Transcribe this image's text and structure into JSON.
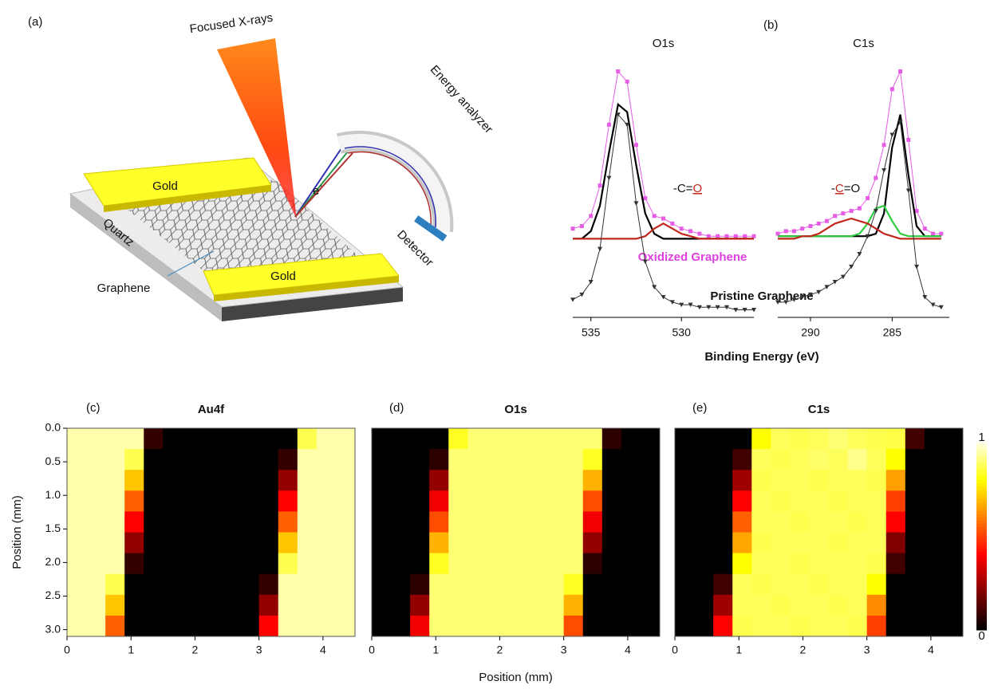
{
  "figure": {
    "panel_labels": [
      "(a)",
      "(b)",
      "(c)",
      "(d)",
      "(e)"
    ],
    "spectra_xlabel": "Binding Energy (eV)",
    "spectra_annotations": [
      "Oxidized Graphene",
      "Pristine Graphene"
    ]
  },
  "schematic": {
    "beam": "Focused X-rays",
    "analyzer": "Energy analyzer",
    "electron": "e",
    "electron_charge": "-",
    "gold": [
      "Gold",
      "Gold"
    ],
    "substrate": "Quartz",
    "sheet": "Graphene",
    "detector": "Detector"
  },
  "chart_data": [
    {
      "type": "line",
      "title": "O1s",
      "x": [
        536,
        535.5,
        535,
        534.5,
        534,
        533.5,
        533,
        532.5,
        532,
        531.5,
        531,
        530.5,
        530,
        529.5,
        529,
        528.5,
        528,
        527.5,
        527,
        526.5,
        526
      ],
      "xlim": [
        536,
        526
      ],
      "xticks": [
        535,
        530
      ],
      "ylim": [
        0,
        1
      ],
      "annotation": {
        "parts": [
          "-C=",
          "O"
        ],
        "highlight": 1
      },
      "series": [
        {
          "color": "#e55ce5",
          "marker": "square",
          "values": [
            0.35,
            0.36,
            0.4,
            0.52,
            0.76,
            0.97,
            0.93,
            0.68,
            0.47,
            0.4,
            0.39,
            0.37,
            0.35,
            0.34,
            0.33,
            0.32,
            0.32,
            0.32,
            0.32,
            0.32,
            0.32
          ]
        },
        {
          "color": "#000000",
          "marker": "none",
          "values": [
            0.31,
            0.31,
            0.34,
            0.44,
            0.65,
            0.84,
            0.81,
            0.6,
            0.41,
            0.33,
            0.31,
            0.31,
            0.31,
            0.31,
            0.31,
            0.31,
            0.31,
            0.31,
            0.31,
            0.31,
            0.31
          ]
        },
        {
          "color": "#c0281c",
          "marker": "none",
          "values": [
            0.31,
            0.31,
            0.31,
            0.31,
            0.31,
            0.31,
            0.31,
            0.31,
            0.32,
            0.35,
            0.37,
            0.35,
            0.33,
            0.32,
            0.31,
            0.31,
            0.31,
            0.31,
            0.31,
            0.31,
            0.31
          ]
        },
        {
          "color": "#333333",
          "marker": "triangle",
          "values": [
            0.07,
            0.09,
            0.14,
            0.27,
            0.55,
            0.8,
            0.76,
            0.45,
            0.22,
            0.12,
            0.08,
            0.06,
            0.05,
            0.05,
            0.04,
            0.04,
            0.04,
            0.04,
            0.03,
            0.03,
            0.03
          ]
        }
      ]
    },
    {
      "type": "line",
      "title": "C1s",
      "x": [
        292,
        291.5,
        291,
        290.5,
        290,
        289.5,
        289,
        288.5,
        288,
        287.5,
        287,
        286.5,
        286,
        285.5,
        285,
        284.5,
        284,
        283.5,
        283,
        282.5,
        282
      ],
      "xlim": [
        292,
        281.5
      ],
      "xticks": [
        290,
        285
      ],
      "ylim": [
        0,
        1
      ],
      "annotation": {
        "parts": [
          "-",
          "C",
          "=O"
        ],
        "highlight": 1
      },
      "series": [
        {
          "color": "#e55ce5",
          "marker": "square",
          "values": [
            0.33,
            0.34,
            0.34,
            0.35,
            0.36,
            0.37,
            0.38,
            0.4,
            0.41,
            0.42,
            0.43,
            0.47,
            0.55,
            0.68,
            0.9,
            0.97,
            0.7,
            0.42,
            0.35,
            0.33,
            0.33
          ]
        },
        {
          "color": "#000000",
          "marker": "none",
          "values": [
            0.32,
            0.32,
            0.32,
            0.32,
            0.32,
            0.32,
            0.32,
            0.32,
            0.32,
            0.32,
            0.32,
            0.32,
            0.33,
            0.41,
            0.67,
            0.8,
            0.56,
            0.36,
            0.32,
            0.32,
            0.32
          ]
        },
        {
          "color": "#2ecc40",
          "marker": "none",
          "values": [
            0.32,
            0.32,
            0.32,
            0.32,
            0.32,
            0.32,
            0.32,
            0.32,
            0.32,
            0.32,
            0.33,
            0.37,
            0.43,
            0.44,
            0.38,
            0.33,
            0.32,
            0.32,
            0.32,
            0.32,
            0.32
          ]
        },
        {
          "color": "#c0281c",
          "marker": "none",
          "values": [
            0.31,
            0.31,
            0.31,
            0.32,
            0.32,
            0.33,
            0.35,
            0.37,
            0.38,
            0.39,
            0.38,
            0.37,
            0.35,
            0.33,
            0.32,
            0.31,
            0.31,
            0.31,
            0.31,
            0.31,
            0.31
          ]
        },
        {
          "color": "#333333",
          "marker": "triangle",
          "values": [
            0.06,
            0.06,
            0.07,
            0.08,
            0.09,
            0.1,
            0.12,
            0.14,
            0.16,
            0.2,
            0.25,
            0.32,
            0.42,
            0.58,
            0.72,
            0.77,
            0.5,
            0.2,
            0.08,
            0.05,
            0.04
          ]
        }
      ]
    },
    {
      "type": "heatmap",
      "title": "Au4f",
      "ylabel": "Position (mm)",
      "xlim": [
        0,
        4.5
      ],
      "xticks": [
        0,
        1,
        2,
        3,
        4
      ],
      "ylim": [
        0,
        3.1
      ],
      "yticks": [
        {
          "value": 0,
          "label": "0.0"
        },
        {
          "value": 0.5,
          "label": "0.5"
        },
        {
          "value": 1,
          "label": "1.0"
        },
        {
          "value": 1.5,
          "label": "1.5"
        },
        {
          "value": 2,
          "label": "2.0"
        },
        {
          "value": 2.5,
          "label": "2.5"
        },
        {
          "value": 3,
          "label": "3.0"
        }
      ],
      "values": [
        [
          0.95,
          0.95,
          0.95,
          0.95,
          0.08,
          0,
          0,
          0,
          0,
          0,
          0,
          0,
          0.87,
          0.95,
          0.95
        ],
        [
          0.95,
          0.95,
          0.95,
          0.87,
          0,
          0,
          0,
          0,
          0,
          0,
          0,
          0.08,
          0.95,
          0.95,
          0.95
        ],
        [
          0.95,
          0.95,
          0.95,
          0.71,
          0,
          0,
          0,
          0,
          0,
          0,
          0,
          0.23,
          0.95,
          0.95,
          0.95
        ],
        [
          0.95,
          0.95,
          0.95,
          0.55,
          0,
          0,
          0,
          0,
          0,
          0,
          0,
          0.4,
          0.95,
          0.95,
          0.95
        ],
        [
          0.95,
          0.95,
          0.95,
          0.4,
          0,
          0,
          0,
          0,
          0,
          0,
          0,
          0.55,
          0.95,
          0.95,
          0.95
        ],
        [
          0.95,
          0.95,
          0.95,
          0.23,
          0,
          0,
          0,
          0,
          0,
          0,
          0,
          0.71,
          0.95,
          0.95,
          0.95
        ],
        [
          0.95,
          0.95,
          0.95,
          0.08,
          0,
          0,
          0,
          0,
          0,
          0,
          0,
          0.87,
          0.95,
          0.95,
          0.95
        ],
        [
          0.95,
          0.95,
          0.87,
          0,
          0,
          0,
          0,
          0,
          0,
          0,
          0.08,
          0.95,
          0.95,
          0.95,
          0.95
        ],
        [
          0.95,
          0.95,
          0.71,
          0,
          0,
          0,
          0,
          0,
          0,
          0,
          0.23,
          0.95,
          0.95,
          0.95,
          0.95
        ],
        [
          0.95,
          0.95,
          0.55,
          0,
          0,
          0,
          0,
          0,
          0,
          0,
          0.4,
          0.95,
          0.95,
          0.95,
          0.95
        ]
      ]
    },
    {
      "type": "heatmap",
      "title": "O1s",
      "xlabel": "Position (mm)",
      "xlim": [
        0,
        4.5
      ],
      "xticks": [
        0,
        1,
        2,
        3,
        4
      ],
      "ylim": [
        0,
        3.1
      ],
      "values": [
        [
          0,
          0,
          0,
          0,
          0.83,
          0.9,
          0.9,
          0.9,
          0.9,
          0.9,
          0.9,
          0.9,
          0.07,
          0,
          0
        ],
        [
          0,
          0,
          0,
          0.07,
          0.9,
          0.9,
          0.9,
          0.9,
          0.9,
          0.9,
          0.9,
          0.83,
          0,
          0,
          0
        ],
        [
          0,
          0,
          0,
          0.23,
          0.9,
          0.9,
          0.9,
          0.9,
          0.9,
          0.9,
          0.9,
          0.68,
          0,
          0,
          0
        ],
        [
          0,
          0,
          0,
          0.38,
          0.9,
          0.9,
          0.9,
          0.9,
          0.9,
          0.9,
          0.9,
          0.52,
          0,
          0,
          0
        ],
        [
          0,
          0,
          0,
          0.52,
          0.9,
          0.9,
          0.9,
          0.9,
          0.9,
          0.9,
          0.9,
          0.38,
          0,
          0,
          0
        ],
        [
          0,
          0,
          0,
          0.68,
          0.9,
          0.9,
          0.9,
          0.9,
          0.9,
          0.9,
          0.9,
          0.23,
          0,
          0,
          0
        ],
        [
          0,
          0,
          0,
          0.83,
          0.9,
          0.9,
          0.9,
          0.9,
          0.9,
          0.9,
          0.9,
          0.07,
          0,
          0,
          0
        ],
        [
          0,
          0,
          0.07,
          0.9,
          0.9,
          0.9,
          0.9,
          0.9,
          0.9,
          0.9,
          0.83,
          0,
          0,
          0,
          0
        ],
        [
          0,
          0,
          0.23,
          0.9,
          0.9,
          0.9,
          0.9,
          0.9,
          0.9,
          0.9,
          0.68,
          0,
          0,
          0,
          0
        ],
        [
          0,
          0,
          0.38,
          0.9,
          0.9,
          0.9,
          0.9,
          0.9,
          0.9,
          0.9,
          0.52,
          0,
          0,
          0,
          0
        ]
      ]
    },
    {
      "type": "heatmap",
      "title": "C1s",
      "xlim": [
        0,
        4.5
      ],
      "xticks": [
        0,
        1,
        2,
        3,
        4
      ],
      "ylim": [
        0,
        3.1
      ],
      "colorbar": {
        "lim": [
          0,
          1
        ],
        "ticks": [
          0,
          1
        ]
      },
      "values": [
        [
          0,
          0,
          0,
          0,
          0.8,
          0.88,
          0.87,
          0.88,
          0.9,
          0.88,
          0.87,
          0.86,
          0.1,
          0,
          0
        ],
        [
          0,
          0,
          0,
          0.1,
          0.88,
          0.87,
          0.88,
          0.89,
          0.88,
          0.92,
          0.88,
          0.8,
          0,
          0,
          0
        ],
        [
          0,
          0,
          0,
          0.25,
          0.87,
          0.88,
          0.88,
          0.87,
          0.88,
          0.88,
          0.87,
          0.65,
          0,
          0,
          0
        ],
        [
          0,
          0,
          0,
          0.4,
          0.88,
          0.87,
          0.88,
          0.88,
          0.87,
          0.88,
          0.88,
          0.5,
          0,
          0,
          0
        ],
        [
          0,
          0,
          0,
          0.55,
          0.88,
          0.88,
          0.87,
          0.88,
          0.88,
          0.87,
          0.88,
          0.4,
          0,
          0,
          0
        ],
        [
          0,
          0,
          0,
          0.66,
          0.87,
          0.88,
          0.88,
          0.88,
          0.87,
          0.88,
          0.88,
          0.2,
          0,
          0,
          0
        ],
        [
          0,
          0,
          0,
          0.8,
          0.88,
          0.88,
          0.87,
          0.88,
          0.88,
          0.88,
          0.87,
          0.1,
          0,
          0,
          0
        ],
        [
          0,
          0,
          0.1,
          0.88,
          0.87,
          0.88,
          0.88,
          0.87,
          0.88,
          0.88,
          0.8,
          0,
          0,
          0,
          0
        ],
        [
          0,
          0,
          0.25,
          0.88,
          0.88,
          0.87,
          0.88,
          0.88,
          0.87,
          0.88,
          0.62,
          0,
          0,
          0,
          0
        ],
        [
          0,
          0,
          0.4,
          0.87,
          0.88,
          0.88,
          0.87,
          0.88,
          0.88,
          0.87,
          0.5,
          0,
          0,
          0,
          0
        ]
      ]
    }
  ]
}
